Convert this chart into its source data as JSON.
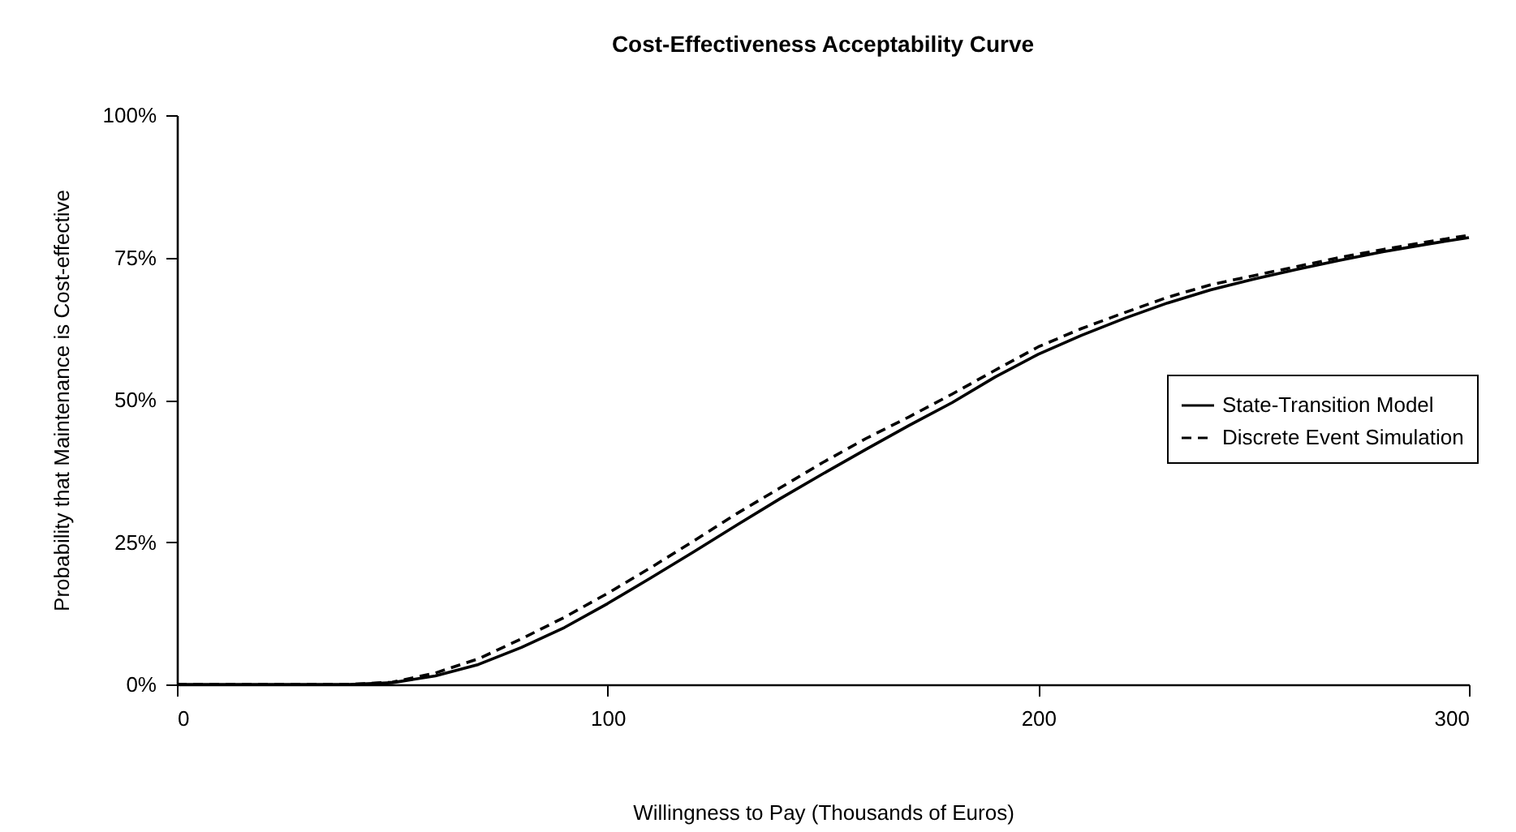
{
  "chart_data": {
    "type": "line",
    "title": "Cost-Effectiveness Acceptability Curve",
    "xlabel": "Willingness to Pay (Thousands of Euros)",
    "ylabel": "Probability that Maintenance is Cost-effective",
    "x": [
      0,
      10,
      20,
      30,
      40,
      50,
      60,
      70,
      80,
      90,
      100,
      110,
      120,
      130,
      140,
      150,
      160,
      170,
      180,
      190,
      200,
      210,
      220,
      230,
      240,
      250,
      260,
      270,
      280,
      290,
      300
    ],
    "series": [
      {
        "name": "State-Transition Model",
        "color": "#000000",
        "line_style": "solid",
        "values": [
          0,
          0,
          0,
          0,
          0,
          0.3,
          1.5,
          3.5,
          6.5,
          10,
          14.2,
          18.7,
          23.3,
          28,
          32.6,
          37,
          41.3,
          45.5,
          49.5,
          54,
          58,
          61.3,
          64.3,
          67,
          69.3,
          71.2,
          72.9,
          74.5,
          76,
          77.3,
          78.5
        ]
      },
      {
        "name": "Discrete Event Simulation",
        "color": "#000000",
        "line_style": "dashed",
        "values": [
          0,
          0,
          0,
          0,
          0,
          0.4,
          2,
          4.5,
          8,
          11.8,
          16,
          20.5,
          25.2,
          30,
          34.5,
          39,
          43.2,
          47,
          51,
          55.2,
          59.3,
          62.5,
          65.3,
          68,
          70.2,
          71.8,
          73.4,
          75,
          76.4,
          77.7,
          78.9
        ]
      }
    ],
    "xlim": [
      0,
      300
    ],
    "xticks": [
      0,
      100,
      200,
      300
    ],
    "ylim": [
      0,
      100
    ],
    "yticks": [
      {
        "value": 0,
        "label": "0%"
      },
      {
        "value": 25,
        "label": "25%"
      },
      {
        "value": 50,
        "label": "50%"
      },
      {
        "value": 75,
        "label": "75%"
      },
      {
        "value": 100,
        "label": "100%"
      }
    ],
    "grid": false,
    "legend": "right",
    "marker": "none"
  }
}
